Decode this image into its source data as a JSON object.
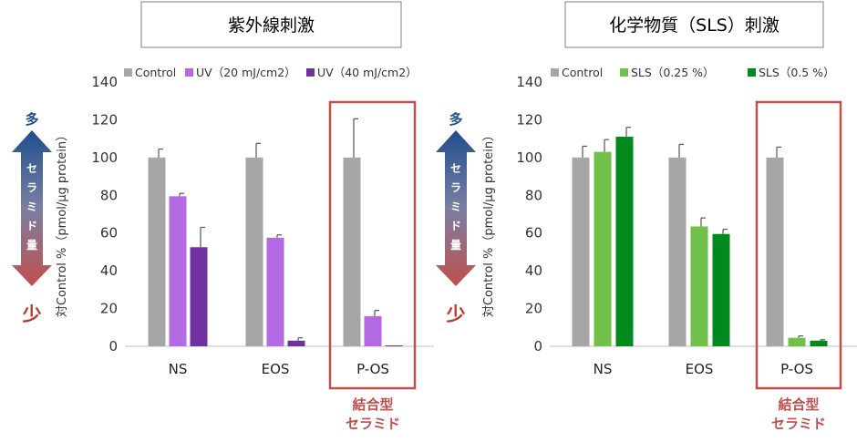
{
  "colors": {
    "control": "#a6a6a6",
    "uv20": "#b36ae2",
    "uv40": "#7030a0",
    "sls025": "#70c04a",
    "sls05": "#008a1e",
    "highlight": "#c0504d",
    "arrow_top": "#1f4e8c",
    "arrow_bottom": "#c0504d"
  },
  "side_indicator": {
    "top": "多",
    "bottom": "少",
    "label": "セラミド量"
  },
  "chart_data": [
    {
      "type": "bar",
      "title": "紫外線刺激",
      "ylabel": "対Control %（pmol/μg protein）",
      "xlabel": "",
      "ylim": [
        0,
        140
      ],
      "yticks": [
        0,
        20,
        40,
        60,
        80,
        100,
        120,
        140
      ],
      "categories": [
        "NS",
        "EOS",
        "P-OS"
      ],
      "legend_position": "top",
      "series": [
        {
          "name": "Control",
          "color": "#a6a6a6",
          "values": [
            100,
            100,
            100
          ],
          "errors": [
            4.5,
            7.5,
            20.5
          ]
        },
        {
          "name": "UV（20 mJ/cm2）",
          "color": "#b36ae2",
          "values": [
            79.5,
            57.5,
            16
          ],
          "errors": [
            1.5,
            1.5,
            3
          ]
        },
        {
          "name": "UV（40 mJ/cm2）",
          "color": "#7030a0",
          "values": [
            52.5,
            3,
            0.5
          ],
          "errors": [
            10.5,
            1.5,
            0
          ]
        }
      ],
      "highlight": {
        "category": "P-OS",
        "note": [
          "結合型",
          "セラミド"
        ]
      }
    },
    {
      "type": "bar",
      "title": "化学物質（SLS）刺激",
      "ylabel": "対Control %（pmol/μg protein）",
      "xlabel": "",
      "ylim": [
        0,
        140
      ],
      "yticks": [
        0,
        20,
        40,
        60,
        80,
        100,
        120,
        140
      ],
      "categories": [
        "NS",
        "EOS",
        "P-OS"
      ],
      "legend_position": "top",
      "series": [
        {
          "name": "Control",
          "color": "#a6a6a6",
          "values": [
            100,
            100,
            100
          ],
          "errors": [
            6,
            7,
            5.5
          ]
        },
        {
          "name": "SLS（0.25 %）",
          "color": "#70c04a",
          "values": [
            103,
            63.5,
            4.5
          ],
          "errors": [
            6.5,
            4.5,
            1
          ]
        },
        {
          "name": "SLS（0.5 %）",
          "color": "#008a1e",
          "values": [
            111,
            59.5,
            3
          ],
          "errors": [
            5,
            2.5,
            0.5
          ]
        }
      ],
      "highlight": {
        "category": "P-OS",
        "note": [
          "結合型",
          "セラミド"
        ]
      }
    }
  ]
}
